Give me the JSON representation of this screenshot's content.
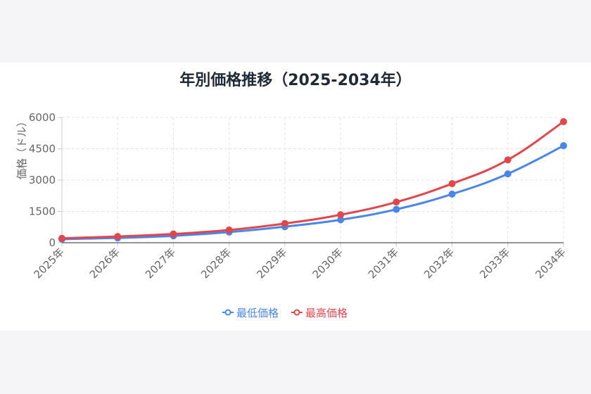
{
  "chart_data": {
    "type": "line",
    "title": "年別価格推移（2025-2034年）",
    "xlabel": "",
    "ylabel": "価格（ドル）",
    "categories": [
      "2025年",
      "2026年",
      "2027年",
      "2028年",
      "2029年",
      "2030年",
      "2031年",
      "2032年",
      "2033年",
      "2034年"
    ],
    "ylim": [
      0,
      6000
    ],
    "yticks": [
      0,
      1500,
      3000,
      4500,
      6000
    ],
    "grid": true,
    "legend_position": "bottom",
    "series": [
      {
        "name": "最低価格",
        "color": "#4a86e8",
        "values": [
          170,
          230,
          330,
          510,
          770,
          1100,
          1600,
          2330,
          3300,
          4650
        ]
      },
      {
        "name": "最高価格",
        "color": "#e0474c",
        "values": [
          210,
          300,
          420,
          610,
          920,
          1340,
          1950,
          2830,
          3970,
          5800
        ]
      }
    ]
  }
}
